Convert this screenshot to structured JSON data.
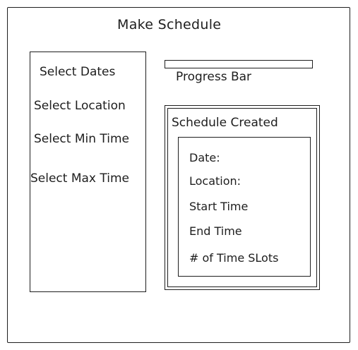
{
  "page": {
    "title": "Make Schedule"
  },
  "sidebar": {
    "items": [
      {
        "label": "Select Dates"
      },
      {
        "label": "Select Location"
      },
      {
        "label": "Select Min Time"
      },
      {
        "label": "Select Max Time"
      }
    ]
  },
  "progress": {
    "label": "Progress Bar",
    "value": 0
  },
  "schedule_panel": {
    "title": "Schedule Created",
    "details": [
      {
        "label": "Date:"
      },
      {
        "label": "Location:"
      },
      {
        "label": "Start Time"
      },
      {
        "label": "End Time"
      },
      {
        "label": "# of Time SLots"
      }
    ]
  }
}
